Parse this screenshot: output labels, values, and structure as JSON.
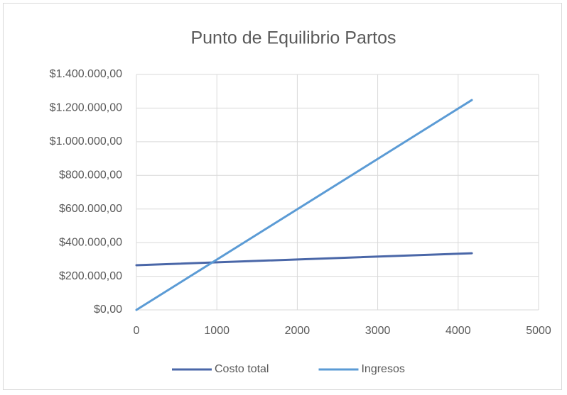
{
  "chart_data": {
    "type": "line",
    "title": "Punto de Equilibrio Partos",
    "x": [
      0,
      4170
    ],
    "series": [
      {
        "name": "Costo total",
        "color": "#4a67a8",
        "values": [
          265700,
          337000
        ]
      },
      {
        "name": "Ingresos",
        "color": "#5b9bd5",
        "values": [
          0,
          1248000
        ]
      }
    ],
    "xlim": [
      0,
      5000
    ],
    "xticks": [
      0,
      1000,
      2000,
      3000,
      4000,
      5000
    ],
    "ylim": [
      0,
      1400000
    ],
    "yticks": [
      {
        "value": 0,
        "label": "$0,00"
      },
      {
        "value": 200000,
        "label": "$200.000,00"
      },
      {
        "value": 400000,
        "label": "$400.000,00"
      },
      {
        "value": 600000,
        "label": "$600.000,00"
      },
      {
        "value": 800000,
        "label": "$800.000,00"
      },
      {
        "value": 1000000,
        "label": "$1.000.000,00"
      },
      {
        "value": 1200000,
        "label": "$1.200.000,00"
      },
      {
        "value": 1400000,
        "label": "$1.400.000,00"
      }
    ],
    "grid": true,
    "legend": "bottom"
  }
}
